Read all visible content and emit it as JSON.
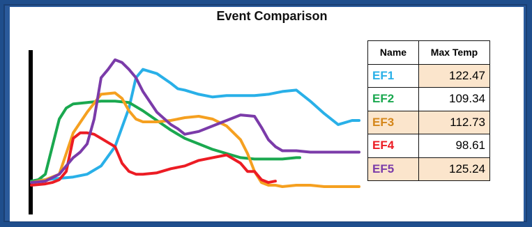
{
  "chart_data": {
    "type": "line",
    "title": "Event Comparison",
    "xlabel": "",
    "ylabel": "",
    "grid": false,
    "legend_placement": "right",
    "series": [
      {
        "name": "EF1",
        "color": "#29b0e8",
        "x": [
          0,
          2,
          4,
          6,
          8,
          10,
          12,
          14,
          15,
          16,
          18,
          20,
          21,
          22,
          24,
          26,
          28,
          30,
          32,
          34,
          36,
          38,
          40,
          42,
          44,
          46,
          47
        ],
        "y": [
          5,
          6,
          7,
          8,
          10,
          16,
          30,
          58,
          80,
          86,
          83,
          76,
          72,
          71,
          68,
          66,
          67,
          67,
          67,
          68,
          70,
          71,
          63,
          54,
          46,
          49,
          49
        ]
      },
      {
        "name": "EF2",
        "color": "#1aa84f",
        "x": [
          0,
          1,
          2,
          3,
          4,
          5,
          6,
          8,
          10,
          12,
          14,
          16,
          18,
          20,
          22,
          24,
          26,
          28,
          30,
          32,
          34,
          36,
          38,
          38.5
        ],
        "y": [
          5,
          6,
          10,
          30,
          50,
          58,
          61,
          62,
          63,
          63,
          62,
          56,
          49,
          42,
          36,
          32,
          28,
          25,
          22,
          21,
          21,
          21,
          22,
          22
        ]
      },
      {
        "name": "EF3",
        "color": "#f5a020",
        "x": [
          0,
          2,
          4,
          5,
          6,
          8,
          10,
          12,
          13,
          14,
          15,
          16,
          18,
          20,
          22,
          24,
          26,
          28,
          30,
          31,
          32,
          33,
          34,
          35,
          36,
          38,
          40,
          42,
          44,
          46,
          47
        ],
        "y": [
          4,
          6,
          10,
          25,
          40,
          55,
          68,
          69,
          65,
          56,
          50,
          48,
          48,
          49,
          51,
          52,
          50,
          45,
          35,
          25,
          12,
          4,
          2,
          2,
          1,
          2,
          2,
          1,
          1,
          1,
          1
        ]
      },
      {
        "name": "EF4",
        "color": "#ec1c24",
        "x": [
          0,
          2,
          3,
          4,
          5,
          6,
          7,
          8,
          9,
          10,
          11,
          12,
          13,
          14,
          15,
          16,
          18,
          20,
          22,
          24,
          26,
          28,
          30,
          31,
          32,
          33,
          34,
          35
        ],
        "y": [
          2,
          3,
          4,
          6,
          12,
          36,
          40,
          40,
          39,
          36,
          33,
          30,
          18,
          12,
          10,
          10,
          11,
          14,
          16,
          20,
          22,
          24,
          18,
          12,
          12,
          6,
          4,
          5
        ]
      },
      {
        "name": "EF5",
        "color": "#7b3ba9",
        "x": [
          0,
          2,
          4,
          6,
          7,
          8,
          9,
          10,
          11,
          12,
          13,
          14,
          15,
          16,
          18,
          20,
          21,
          22,
          24,
          26,
          28,
          30,
          32,
          33,
          34,
          35,
          36,
          38,
          40,
          42,
          44,
          46,
          47
        ],
        "y": [
          4,
          5,
          10,
          22,
          26,
          32,
          50,
          80,
          86,
          93,
          91,
          86,
          80,
          70,
          55,
          46,
          43,
          39,
          41,
          45,
          49,
          53,
          52,
          44,
          35,
          30,
          27,
          27,
          26,
          26,
          26,
          26,
          26
        ]
      }
    ],
    "table": {
      "headers": [
        "Name",
        "Max Temp"
      ],
      "rows": [
        {
          "name": "EF1",
          "value": "122.47",
          "color": "#29b0e8"
        },
        {
          "name": "EF2",
          "value": "109.34",
          "color": "#1aa84f"
        },
        {
          "name": "EF3",
          "value": "112.73",
          "color": "#d4861a"
        },
        {
          "name": "EF4",
          "value": "98.61",
          "color": "#ec1c24"
        },
        {
          "name": "EF5",
          "value": "125.24",
          "color": "#7b3ba9"
        }
      ]
    }
  }
}
